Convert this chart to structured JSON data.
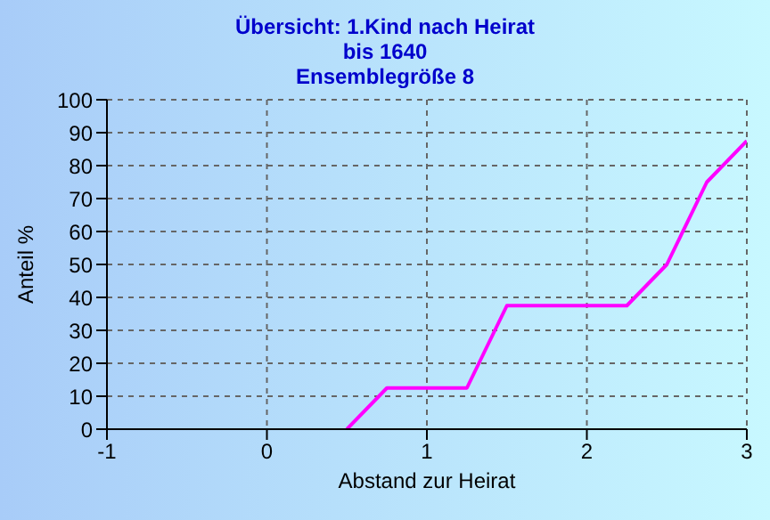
{
  "chart_data": {
    "type": "line",
    "title": "Übersicht: 1.Kind nach Heirat\nbis 1640\nEnsemblegröße 8",
    "xlabel": "Abstand zur Heirat",
    "ylabel": "Anteil %",
    "x": [
      0.5,
      0.75,
      1.25,
      1.5,
      2.25,
      2.5,
      2.75,
      3
    ],
    "series": [
      {
        "color": "#ff00ff",
        "values": [
          0,
          12.5,
          12.5,
          37.5,
          37.5,
          50,
          75,
          87.5
        ]
      }
    ],
    "xlim": [
      -1,
      3
    ],
    "xticks": [
      -1,
      0,
      1,
      2,
      3
    ],
    "ylim": [
      0,
      100
    ],
    "yticks": [
      0,
      10,
      20,
      30,
      40,
      50,
      60,
      70,
      80,
      90,
      100
    ],
    "grid": true
  }
}
